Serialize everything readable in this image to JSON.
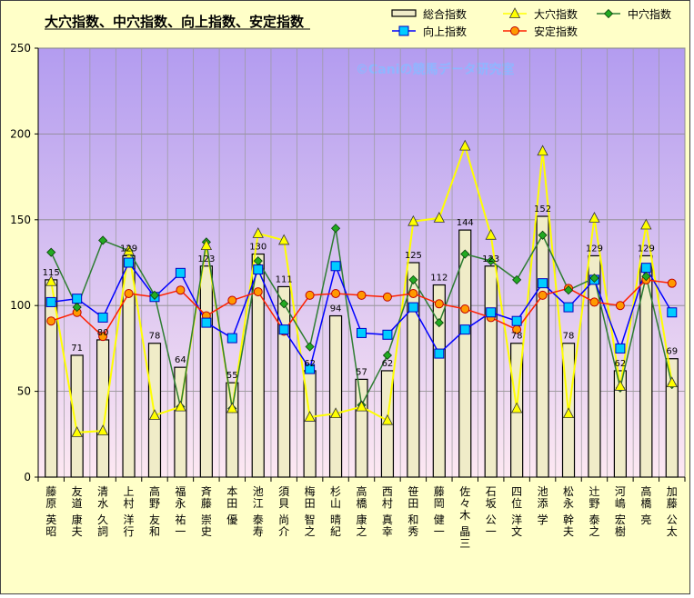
{
  "chart_data": {
    "type": "bar",
    "title": "大穴指数、中穴指数、向上指数、安定指数",
    "watermark": "©Caniの競馬データ研究室",
    "ylim": [
      0,
      250
    ],
    "yticks": [
      0,
      50,
      100,
      150,
      200,
      250
    ],
    "categories": [
      "藤原 英昭",
      "友道 康夫",
      "清水 久詞",
      "上村 洋行",
      "高野 友和",
      "福永 祐一",
      "斉藤 崇史",
      "本田 優",
      "池江 泰寿",
      "須貝 尚介",
      "梅田 智之",
      "杉山 晴紀",
      "高橋 康之",
      "西村 真幸",
      "笹田 和秀",
      "藤岡 健一",
      "佐々木 晶三",
      "石坂 公一",
      "四位 洋文",
      "池添 学",
      "松永 幹夫",
      "辻野 泰之",
      "河嶋 宏樹",
      "高橋 亮",
      "加藤 公太"
    ],
    "series": [
      {
        "name": "総合指数",
        "kind": "bar",
        "color": "#f0ecc8",
        "values": [
          115,
          71,
          80,
          129,
          78,
          64,
          123,
          55,
          130,
          111,
          62,
          94,
          57,
          62,
          125,
          112,
          144,
          123,
          78,
          152,
          78,
          129,
          62,
          129,
          69
        ]
      },
      {
        "name": "大穴指数",
        "kind": "line",
        "color": "#ffff00",
        "marker": "triangle",
        "values": [
          114,
          26,
          27,
          132,
          36,
          41,
          135,
          40,
          142,
          138,
          35,
          37,
          41,
          33,
          149,
          151,
          193,
          141,
          40,
          190,
          37,
          151,
          53,
          147,
          55
        ]
      },
      {
        "name": "中穴指数",
        "kind": "line",
        "color": "#2e7d32",
        "marker": "diamond",
        "values": [
          131,
          99,
          138,
          132,
          106,
          41,
          137,
          40,
          126,
          101,
          76,
          145,
          42,
          71,
          115,
          90,
          130,
          126,
          115,
          141,
          109,
          116,
          52,
          117,
          54
        ]
      },
      {
        "name": "向上指数",
        "kind": "line",
        "color": "#0000ff",
        "marker": "square",
        "values": [
          102,
          104,
          93,
          125,
          105,
          119,
          90,
          81,
          121,
          86,
          63,
          123,
          84,
          83,
          99,
          72,
          86,
          96,
          91,
          113,
          99,
          115,
          75,
          122,
          96
        ]
      },
      {
        "name": "安定指数",
        "kind": "line",
        "color": "#ff2000",
        "marker": "circle",
        "values": [
          91,
          96,
          82,
          107,
          105,
          109,
          94,
          103,
          108,
          85,
          106,
          107,
          106,
          105,
          107,
          101,
          98,
          93,
          86,
          106,
          110,
          102,
          100,
          115,
          113
        ]
      }
    ],
    "data_labels": [
      "115",
      "71",
      "80",
      "129",
      "78",
      "64",
      "123",
      "55",
      "130",
      "111",
      "62",
      "94",
      "57",
      "62",
      "125",
      "112",
      "144",
      "123",
      "78",
      "152",
      "78",
      "129",
      "62",
      "129",
      "69"
    ],
    "legend": [
      {
        "label": "総合指数",
        "icon": "bar-swatch"
      },
      {
        "label": "大穴指数",
        "icon": "triangle-marker"
      },
      {
        "label": "中穴指数",
        "icon": "diamond-marker"
      },
      {
        "label": "向上指数",
        "icon": "square-marker"
      },
      {
        "label": "安定指数",
        "icon": "circle-marker"
      }
    ],
    "legend_position": "top-right",
    "grid": true
  }
}
